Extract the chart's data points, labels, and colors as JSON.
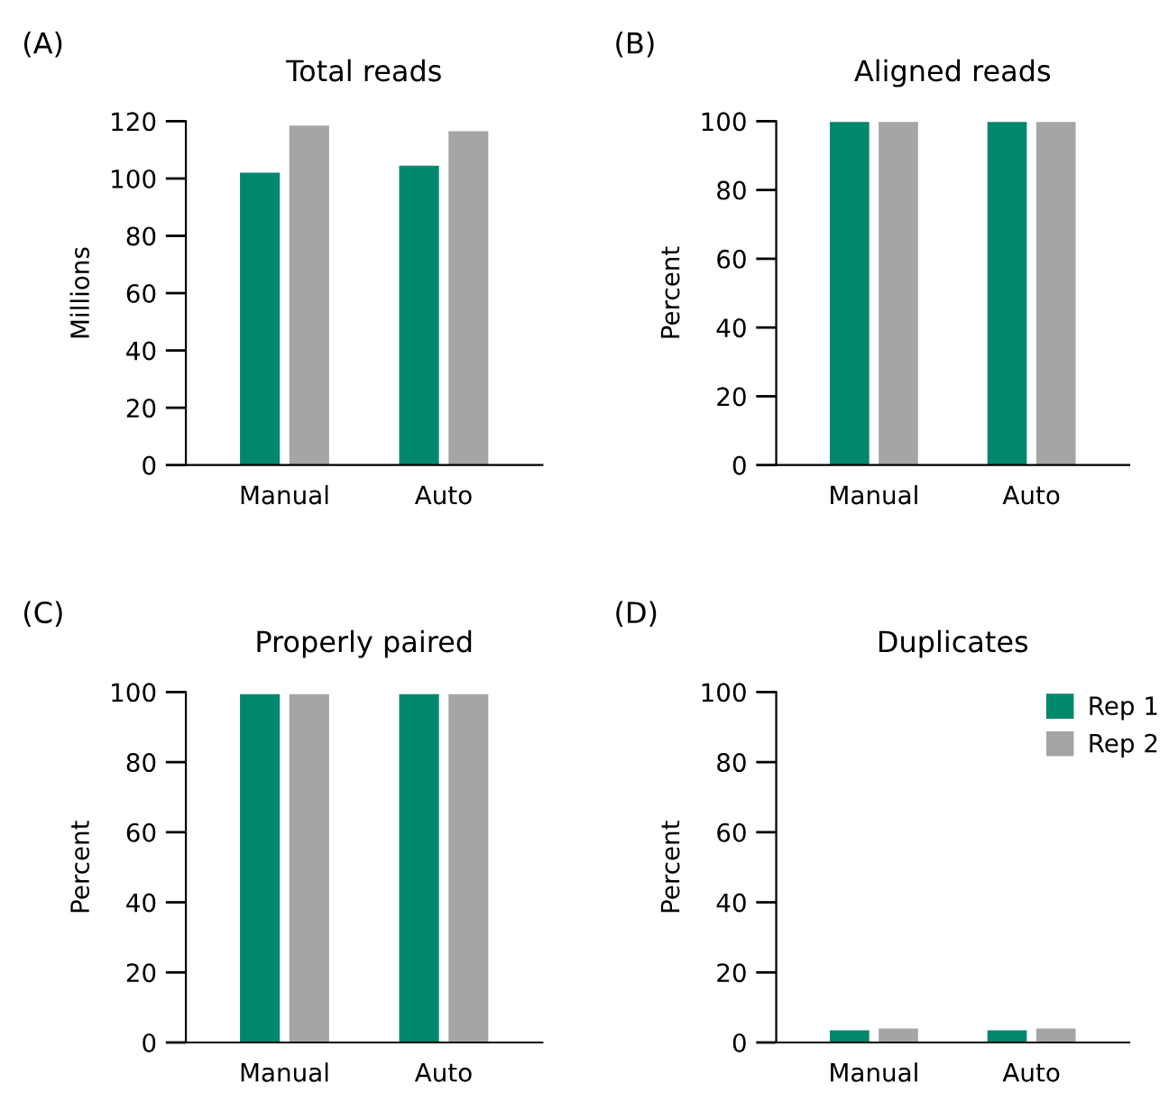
{
  "chart_data": [
    {
      "type": "bar",
      "title": "Total reads",
      "ylabel": "Millions",
      "annotations": [
        "(A)"
      ],
      "categories": [
        "Manual",
        "Auto"
      ],
      "ylim": [
        0,
        120
      ],
      "yticks": [
        0,
        20,
        40,
        60,
        80,
        100,
        120
      ],
      "grid": false,
      "legend": false,
      "series": [
        {
          "color": "#00876c",
          "values": [
            102,
            104.5
          ]
        },
        {
          "color": "#a5a5a5",
          "values": [
            118.5,
            116.5
          ]
        }
      ]
    },
    {
      "type": "bar",
      "title": "Aligned reads",
      "ylabel": "Percent",
      "annotations": [
        "(B)"
      ],
      "categories": [
        "Manual",
        "Auto"
      ],
      "ylim": [
        0,
        100
      ],
      "yticks": [
        0,
        20,
        40,
        60,
        80,
        100
      ],
      "grid": false,
      "legend": false,
      "series": [
        {
          "color": "#00876c",
          "values": [
            99.8,
            99.8
          ]
        },
        {
          "color": "#a5a5a5",
          "values": [
            99.8,
            99.8
          ]
        }
      ]
    },
    {
      "type": "bar",
      "title": "Properly paired",
      "ylabel": "Percent",
      "annotations": [
        "(C)"
      ],
      "categories": [
        "Manual",
        "Auto"
      ],
      "ylim": [
        0,
        100
      ],
      "yticks": [
        0,
        20,
        40,
        60,
        80,
        100
      ],
      "grid": false,
      "legend": false,
      "series": [
        {
          "color": "#00876c",
          "values": [
            99.4,
            99.4
          ]
        },
        {
          "color": "#a5a5a5",
          "values": [
            99.4,
            99.4
          ]
        }
      ]
    },
    {
      "type": "bar",
      "title": "Duplicates",
      "ylabel": "Percent",
      "annotations": [
        "(D)"
      ],
      "categories": [
        "Manual",
        "Auto"
      ],
      "ylim": [
        0,
        100
      ],
      "yticks": [
        0,
        20,
        40,
        60,
        80,
        100
      ],
      "grid": false,
      "legend": "top right",
      "series": [
        {
          "name": "Rep 1",
          "color": "#00876c",
          "values": [
            3.5,
            3.5
          ]
        },
        {
          "name": "Rep 2",
          "color": "#a5a5a5",
          "values": [
            4.0,
            4.0
          ]
        }
      ]
    }
  ]
}
